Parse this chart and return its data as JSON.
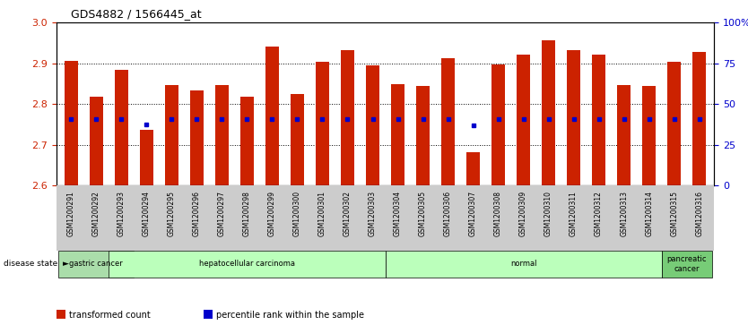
{
  "title": "GDS4882 / 1566445_at",
  "samples": [
    "GSM1200291",
    "GSM1200292",
    "GSM1200293",
    "GSM1200294",
    "GSM1200295",
    "GSM1200296",
    "GSM1200297",
    "GSM1200298",
    "GSM1200299",
    "GSM1200300",
    "GSM1200301",
    "GSM1200302",
    "GSM1200303",
    "GSM1200304",
    "GSM1200305",
    "GSM1200306",
    "GSM1200307",
    "GSM1200308",
    "GSM1200309",
    "GSM1200310",
    "GSM1200311",
    "GSM1200312",
    "GSM1200313",
    "GSM1200314",
    "GSM1200315",
    "GSM1200316"
  ],
  "bar_values": [
    2.907,
    2.818,
    2.884,
    2.736,
    2.847,
    2.833,
    2.847,
    2.819,
    2.942,
    2.824,
    2.903,
    2.932,
    2.896,
    2.848,
    2.845,
    2.912,
    2.681,
    2.898,
    2.921,
    2.957,
    2.932,
    2.922,
    2.847,
    2.845,
    2.903,
    2.928
  ],
  "percentile_values": [
    2.762,
    2.762,
    2.762,
    2.749,
    2.762,
    2.762,
    2.762,
    2.762,
    2.762,
    2.762,
    2.762,
    2.762,
    2.762,
    2.762,
    2.762,
    2.762,
    2.748,
    2.762,
    2.762,
    2.762,
    2.762,
    2.762,
    2.762,
    2.762,
    2.762,
    2.762
  ],
  "bar_color": "#cc2200",
  "dot_color": "#0000cc",
  "ylim_left": [
    2.6,
    3.0
  ],
  "ylim_right": [
    0,
    100
  ],
  "yticks_left": [
    2.6,
    2.7,
    2.8,
    2.9,
    3.0
  ],
  "yticks_right": [
    0,
    25,
    50,
    75,
    100
  ],
  "ytick_labels_right": [
    "0",
    "25",
    "50",
    "75",
    "100%"
  ],
  "bg_color": "#ffffff",
  "tick_label_color_left": "#cc2200",
  "tick_label_color_right": "#0000cc",
  "disease_groups": [
    {
      "label": "gastric cancer",
      "start": 0,
      "end": 2,
      "color": "#aaddaa"
    },
    {
      "label": "hepatocellular carcinoma",
      "start": 2,
      "end": 12,
      "color": "#bbffbb"
    },
    {
      "label": "normal",
      "start": 13,
      "end": 23,
      "color": "#bbffbb"
    },
    {
      "label": "pancreatic\ncancer",
      "start": 24,
      "end": 25,
      "color": "#77cc77"
    }
  ],
  "legend_items": [
    {
      "color": "#cc2200",
      "label": "transformed count"
    },
    {
      "color": "#0000cc",
      "label": "percentile rank within the sample"
    }
  ],
  "xtick_bg_color": "#cccccc"
}
